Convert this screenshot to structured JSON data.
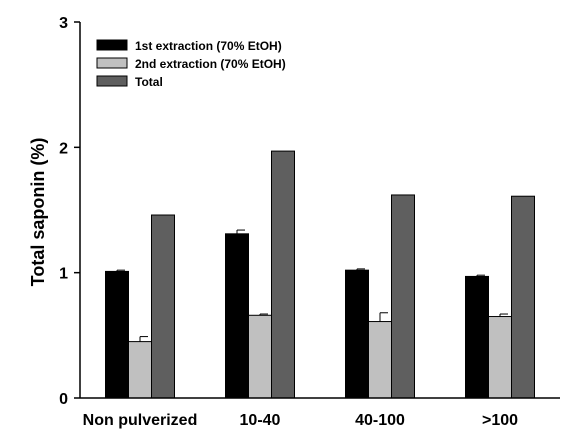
{
  "chart_data": {
    "type": "bar",
    "title": "",
    "xlabel": "",
    "ylabel": "Total saponin (%)",
    "ylim": [
      0,
      3
    ],
    "yticks": [
      "0",
      "1",
      "2",
      "3"
    ],
    "grid": false,
    "legend_position": "top-left",
    "categories": [
      "Non pulverized",
      "10-40",
      "40-100",
      ">100"
    ],
    "series": [
      {
        "name": "1st extraction (70% EtOH)",
        "color": "#000000",
        "values": [
          1.01,
          1.31,
          1.02,
          0.97
        ],
        "errors": [
          0.01,
          0.03,
          0.01,
          0.01
        ]
      },
      {
        "name": "2nd extraction (70% EtOH)",
        "color": "#c0c0c0",
        "values": [
          0.45,
          0.66,
          0.61,
          0.65
        ],
        "errors": [
          0.04,
          0.01,
          0.07,
          0.02
        ]
      },
      {
        "name": "Total",
        "color": "#5f5f5f",
        "values": [
          1.46,
          1.97,
          1.62,
          1.61
        ],
        "errors": [
          0,
          0,
          0,
          0
        ]
      }
    ]
  }
}
